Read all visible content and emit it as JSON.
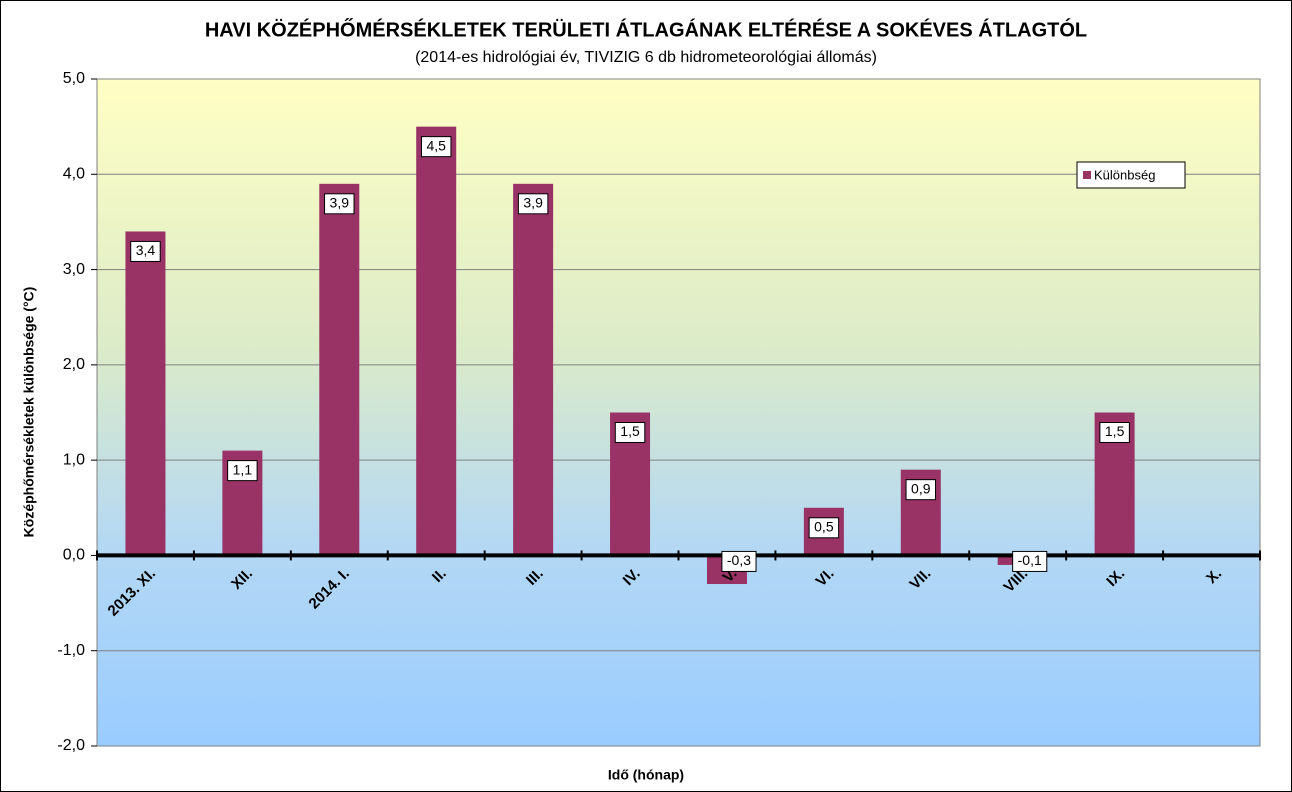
{
  "chart_data": {
    "type": "bar",
    "title": "HAVI KÖZÉPHŐMÉRSÉKLETEK TERÜLETI ÁTLAGÁNAK ELTÉRÉSE A SOKÉVES ÁTLAGTÓL",
    "subtitle": "(2014-es hidrológiai év, TIVIZIG 6 db hidrometeorológiai állomás)",
    "x_label": "Idő (hónap)",
    "y_label": "Középhőmérsékletek különbsége (°C)",
    "categories": [
      "2013. XI.",
      "XII.",
      "2014. I.",
      "II.",
      "III.",
      "IV.",
      "V.",
      "VI.",
      "VII.",
      "VIII.",
      "IX.",
      "X."
    ],
    "series": [
      {
        "name": "Különbség",
        "color": "#993366",
        "values": [
          3.4,
          1.1,
          3.9,
          4.5,
          3.9,
          1.5,
          -0.3,
          0.5,
          0.9,
          -0.1,
          1.5,
          null
        ],
        "value_labels": [
          "3,4",
          "1,1",
          "3,9",
          "4,5",
          "3,9",
          "1,5",
          "-0,3",
          "0,5",
          "0,9",
          "-0,1",
          "1,5",
          null
        ]
      }
    ],
    "ylim": [
      -2,
      5
    ],
    "yticks": [
      {
        "value": -2,
        "label": "-2,0"
      },
      {
        "value": -1,
        "label": "-1,0"
      },
      {
        "value": 0,
        "label": "0,0"
      },
      {
        "value": 1,
        "label": "1,0"
      },
      {
        "value": 2,
        "label": "2,0"
      },
      {
        "value": 3,
        "label": "3,0"
      },
      {
        "value": 4,
        "label": "4,0"
      },
      {
        "value": 5,
        "label": "5,0"
      }
    ],
    "grid": true
  }
}
